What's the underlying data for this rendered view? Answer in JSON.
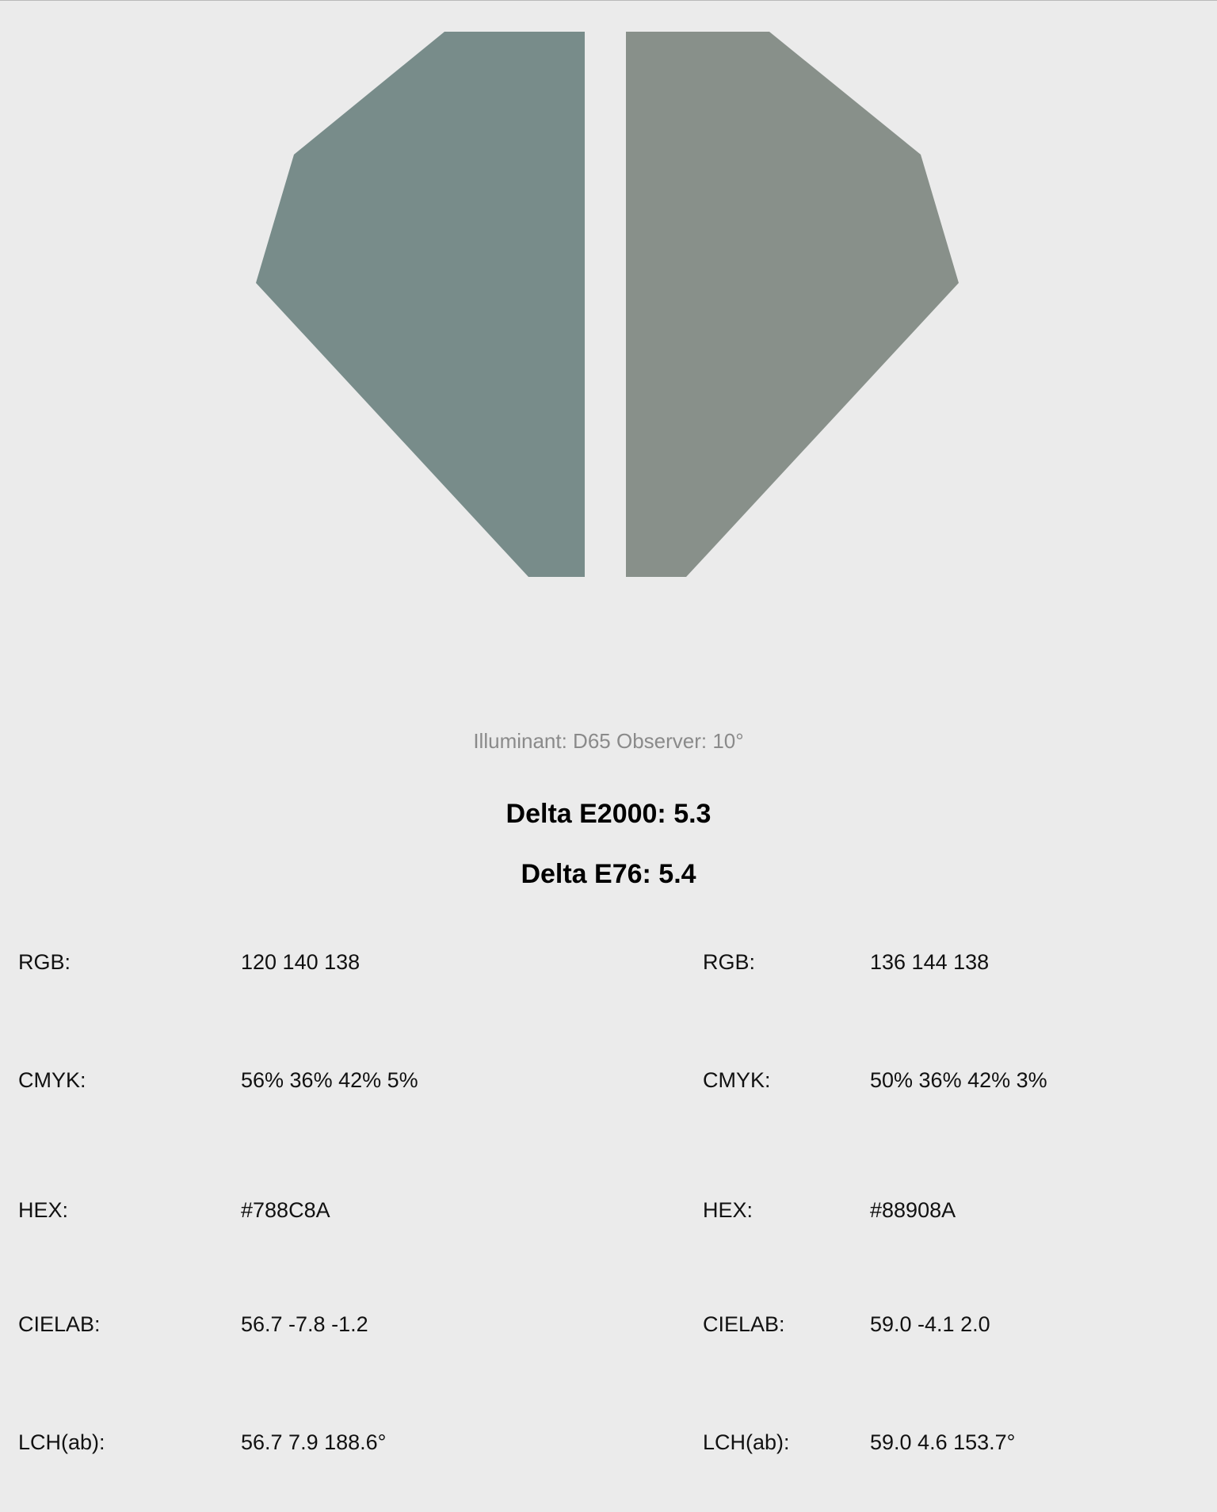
{
  "swatches": {
    "left": {
      "name": "left-swatch",
      "color": "#788C8A"
    },
    "right": {
      "name": "right-swatch",
      "color": "#88908A"
    }
  },
  "conditions": "Illuminant: D65 Observer: 10°",
  "delta": {
    "e2000": "Delta E2000: 5.3",
    "e76": "Delta E76: 5.4"
  },
  "left_color": {
    "rgb_label": "RGB:",
    "rgb": "120 140 138",
    "cmyk_label": "CMYK:",
    "cmyk": "56% 36% 42% 5%",
    "hex_label": "HEX:",
    "hex": "#788C8A",
    "cielab_label": "CIELAB:",
    "cielab": "56.7 -7.8 -1.2",
    "lch_label": "LCH(ab):",
    "lch": "56.7 7.9 188.6°"
  },
  "right_color": {
    "rgb_label": "RGB:",
    "rgb": "136 144 138",
    "cmyk_label": "CMYK:",
    "cmyk": "50% 36% 42% 3%",
    "hex_label": "HEX:",
    "hex": "#88908A",
    "cielab_label": "CIELAB:",
    "cielab": "59.0 -4.1 2.0",
    "lch_label": "LCH(ab):",
    "lch": "59.0 4.6 153.7°"
  }
}
